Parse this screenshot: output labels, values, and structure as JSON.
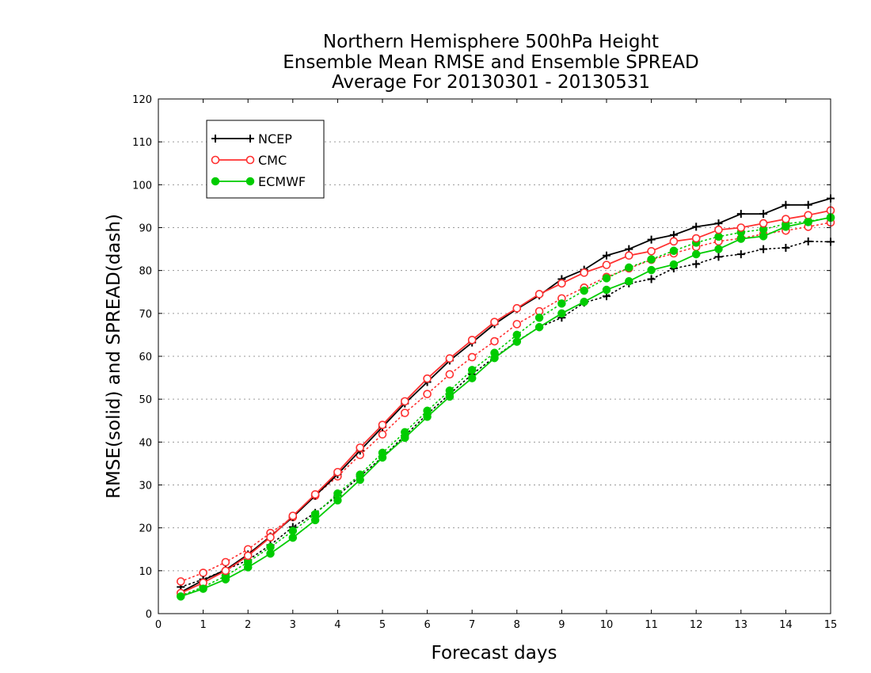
{
  "chart_data": {
    "type": "line",
    "title_lines": [
      "Northern Hemisphere 500hPa Height",
      "Ensemble Mean RMSE and Ensemble SPREAD",
      "Average For 20130301 - 20130531"
    ],
    "xlabel": "Forecast days",
    "ylabel": "RMSE(solid) and SPREAD(dash)",
    "xlim": [
      0,
      15
    ],
    "ylim": [
      0,
      120
    ],
    "xticks": [
      0,
      1,
      2,
      3,
      4,
      5,
      6,
      7,
      8,
      9,
      10,
      11,
      12,
      13,
      14,
      15
    ],
    "yticks": [
      0,
      10,
      20,
      30,
      40,
      50,
      60,
      70,
      80,
      90,
      100,
      110,
      120
    ],
    "grid": "horizontal dotted",
    "legend_position": "top-left",
    "x": [
      0.5,
      1,
      1.5,
      2,
      2.5,
      3,
      3.5,
      4,
      4.5,
      5,
      5.5,
      6,
      6.5,
      7,
      7.5,
      8,
      8.5,
      9,
      9.5,
      10,
      10.5,
      11,
      11.5,
      12,
      12.5,
      13,
      13.5,
      14,
      14.5,
      15
    ],
    "series": [
      {
        "name": "NCEP",
        "metric": "RMSE",
        "style": "solid",
        "marker": "plus",
        "color": "#000000",
        "values": [
          5,
          7.8,
          10.2,
          13.8,
          18,
          22.5,
          27.5,
          32.5,
          38,
          43.5,
          49,
          54,
          59,
          63.2,
          67.5,
          71,
          74.2,
          78,
          80.2,
          83.5,
          85,
          87.2,
          88.3,
          90.2,
          91,
          93.2,
          93.2,
          95.3,
          95.3,
          96.8
        ]
      },
      {
        "name": "NCEP",
        "metric": "SPREAD",
        "style": "dotted",
        "marker": "plus",
        "color": "#000000",
        "values": [
          6.2,
          8,
          10.2,
          12.5,
          16,
          20.2,
          23.5,
          27.5,
          32,
          36.5,
          41.5,
          46.5,
          51.2,
          55.8,
          59.8,
          63.5,
          66.8,
          69,
          72.5,
          74,
          77,
          78,
          80.5,
          81.5,
          83.2,
          83.8,
          85,
          85.3,
          86.8,
          86.7
        ]
      },
      {
        "name": "CMC",
        "metric": "RMSE",
        "style": "solid",
        "marker": "open-circle",
        "color": "#ff3030",
        "values": [
          4.8,
          7.2,
          10,
          13.5,
          17.8,
          22.8,
          27.8,
          33,
          38.7,
          44,
          49.5,
          54.8,
          59.5,
          63.8,
          68,
          71.2,
          74.5,
          77,
          79.5,
          81.3,
          83.5,
          84.5,
          86.8,
          87.5,
          89.5,
          90,
          91,
          92,
          92.9,
          94
        ]
      },
      {
        "name": "CMC",
        "metric": "SPREAD",
        "style": "dotted",
        "marker": "open-circle",
        "color": "#ff3030",
        "values": [
          7.5,
          9.5,
          12,
          15,
          18.8,
          22.5,
          27.5,
          32,
          37,
          41.8,
          46.8,
          51.2,
          55.8,
          59.8,
          63.5,
          67.5,
          70.5,
          73.5,
          76,
          78.5,
          80.5,
          82.5,
          84,
          85.5,
          86.8,
          87.5,
          88.5,
          89.3,
          90.2,
          91.2
        ]
      },
      {
        "name": "ECMWF",
        "metric": "RMSE",
        "style": "solid",
        "marker": "filled-circle",
        "color": "#00cc00",
        "values": [
          4,
          5.8,
          8,
          10.8,
          14,
          17.7,
          21.8,
          26.4,
          31.2,
          36.4,
          41,
          45.9,
          50.6,
          54.9,
          59.6,
          63.4,
          66.8,
          70,
          72.7,
          75.5,
          77.5,
          80.1,
          81.4,
          83.8,
          85,
          87.4,
          88,
          90.2,
          91.3,
          92.4
        ]
      },
      {
        "name": "ECMWF",
        "metric": "SPREAD",
        "style": "dotted",
        "marker": "filled-circle",
        "color": "#00cc00",
        "values": [
          4.2,
          6.2,
          8.8,
          12,
          15.5,
          19.3,
          23.2,
          28,
          32.4,
          37.5,
          42.3,
          47.3,
          52,
          56.8,
          60.8,
          65,
          69,
          72.3,
          75.3,
          78.2,
          80.7,
          82.6,
          84.6,
          86.5,
          87.9,
          88.9,
          89.6,
          90.9,
          91.5,
          92.3
        ]
      }
    ]
  }
}
